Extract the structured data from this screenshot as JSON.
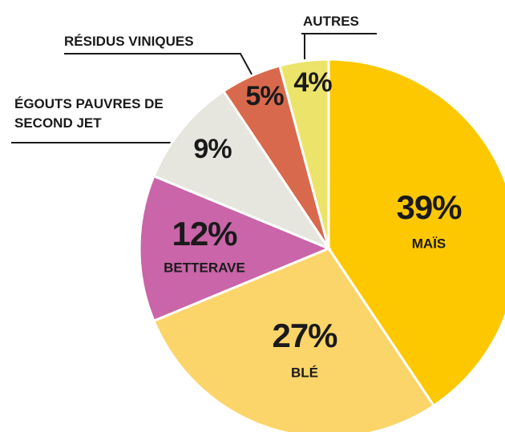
{
  "chart_data": {
    "type": "pie",
    "categories": [
      "MAÏS",
      "BLÉ",
      "BETTERAVE",
      "ÉGOUTS PAUVRES DE SECOND JET",
      "RÉSIDUS VINIQUES",
      "AUTRES"
    ],
    "values": [
      39,
      27,
      12,
      9,
      5,
      4
    ],
    "value_labels": [
      "39%",
      "27%",
      "12%",
      "9%",
      "5%",
      "4%"
    ],
    "colors": [
      "#fdc800",
      "#fcd56a",
      "#c965a8",
      "#e6e6df",
      "#d9694c",
      "#ece46a"
    ]
  }
}
